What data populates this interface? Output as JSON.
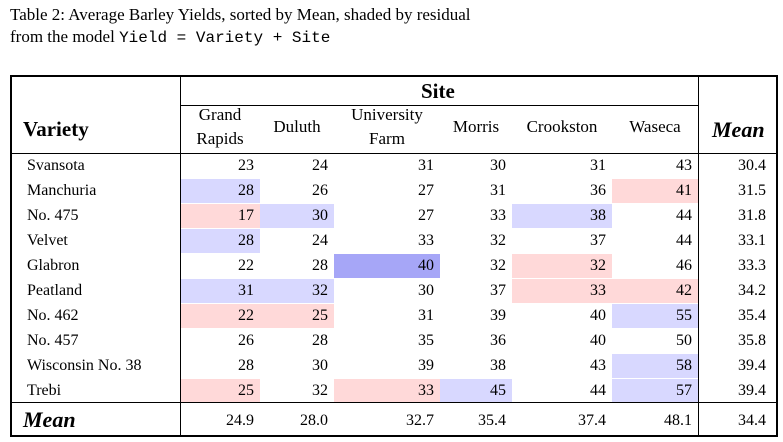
{
  "caption": {
    "line1": "Table 2:  Average Barley Yields, sorted by Mean, shaded by residual",
    "line2_prefix": "from the model ",
    "line2_code": "Yield = Variety + Site"
  },
  "header": {
    "variety": "Variety",
    "site": "Site",
    "mean": "Mean",
    "sites": [
      [
        "Grand",
        "Rapids"
      ],
      [
        "Duluth"
      ],
      [
        "University",
        "Farm"
      ],
      [
        "Morris"
      ],
      [
        "Crookston"
      ],
      [
        "Waseca"
      ]
    ]
  },
  "shade_colors": {
    "blue": "#d8d8ff",
    "blue_strong": "#a6a6f7",
    "pink": "#ffd9d9"
  },
  "rows": [
    {
      "name": "Svansota",
      "values": [
        "23",
        "24",
        "31",
        "30",
        "31",
        "43"
      ],
      "mean": "30.4",
      "shade": [
        null,
        null,
        null,
        null,
        null,
        null
      ]
    },
    {
      "name": "Manchuria",
      "values": [
        "28",
        "26",
        "27",
        "31",
        "36",
        "41"
      ],
      "mean": "31.5",
      "shade": [
        "blue",
        null,
        null,
        null,
        null,
        "pink"
      ]
    },
    {
      "name": "No. 475",
      "values": [
        "17",
        "30",
        "27",
        "33",
        "38",
        "44"
      ],
      "mean": "31.8",
      "shade": [
        "pink",
        "blue",
        null,
        null,
        "blue",
        null
      ]
    },
    {
      "name": "Velvet",
      "values": [
        "28",
        "24",
        "33",
        "32",
        "37",
        "44"
      ],
      "mean": "33.1",
      "shade": [
        "blue",
        null,
        null,
        null,
        null,
        null
      ]
    },
    {
      "name": "Glabron",
      "values": [
        "22",
        "28",
        "40",
        "32",
        "32",
        "46"
      ],
      "mean": "33.3",
      "shade": [
        null,
        null,
        "blue_strong",
        null,
        "pink",
        null
      ]
    },
    {
      "name": "Peatland",
      "values": [
        "31",
        "32",
        "30",
        "37",
        "33",
        "42"
      ],
      "mean": "34.2",
      "shade": [
        "blue",
        "blue",
        null,
        null,
        "pink",
        "pink"
      ]
    },
    {
      "name": "No. 462",
      "values": [
        "22",
        "25",
        "31",
        "39",
        "40",
        "55"
      ],
      "mean": "35.4",
      "shade": [
        "pink",
        "pink",
        null,
        null,
        null,
        "blue"
      ]
    },
    {
      "name": "No. 457",
      "values": [
        "26",
        "28",
        "35",
        "36",
        "40",
        "50"
      ],
      "mean": "35.8",
      "shade": [
        null,
        null,
        null,
        null,
        null,
        null
      ]
    },
    {
      "name": "Wisconsin No. 38",
      "values": [
        "28",
        "30",
        "39",
        "38",
        "43",
        "58"
      ],
      "mean": "39.4",
      "shade": [
        null,
        null,
        null,
        null,
        null,
        "blue"
      ]
    },
    {
      "name": "Trebi",
      "values": [
        "25",
        "32",
        "33",
        "45",
        "44",
        "57"
      ],
      "mean": "39.4",
      "shade": [
        "pink",
        null,
        "pink",
        "blue",
        null,
        "blue"
      ]
    }
  ],
  "mean_row": {
    "label": "Mean",
    "values": [
      "24.9",
      "28.0",
      "32.7",
      "35.4",
      "37.4",
      "48.1"
    ],
    "mean": "34.4"
  }
}
